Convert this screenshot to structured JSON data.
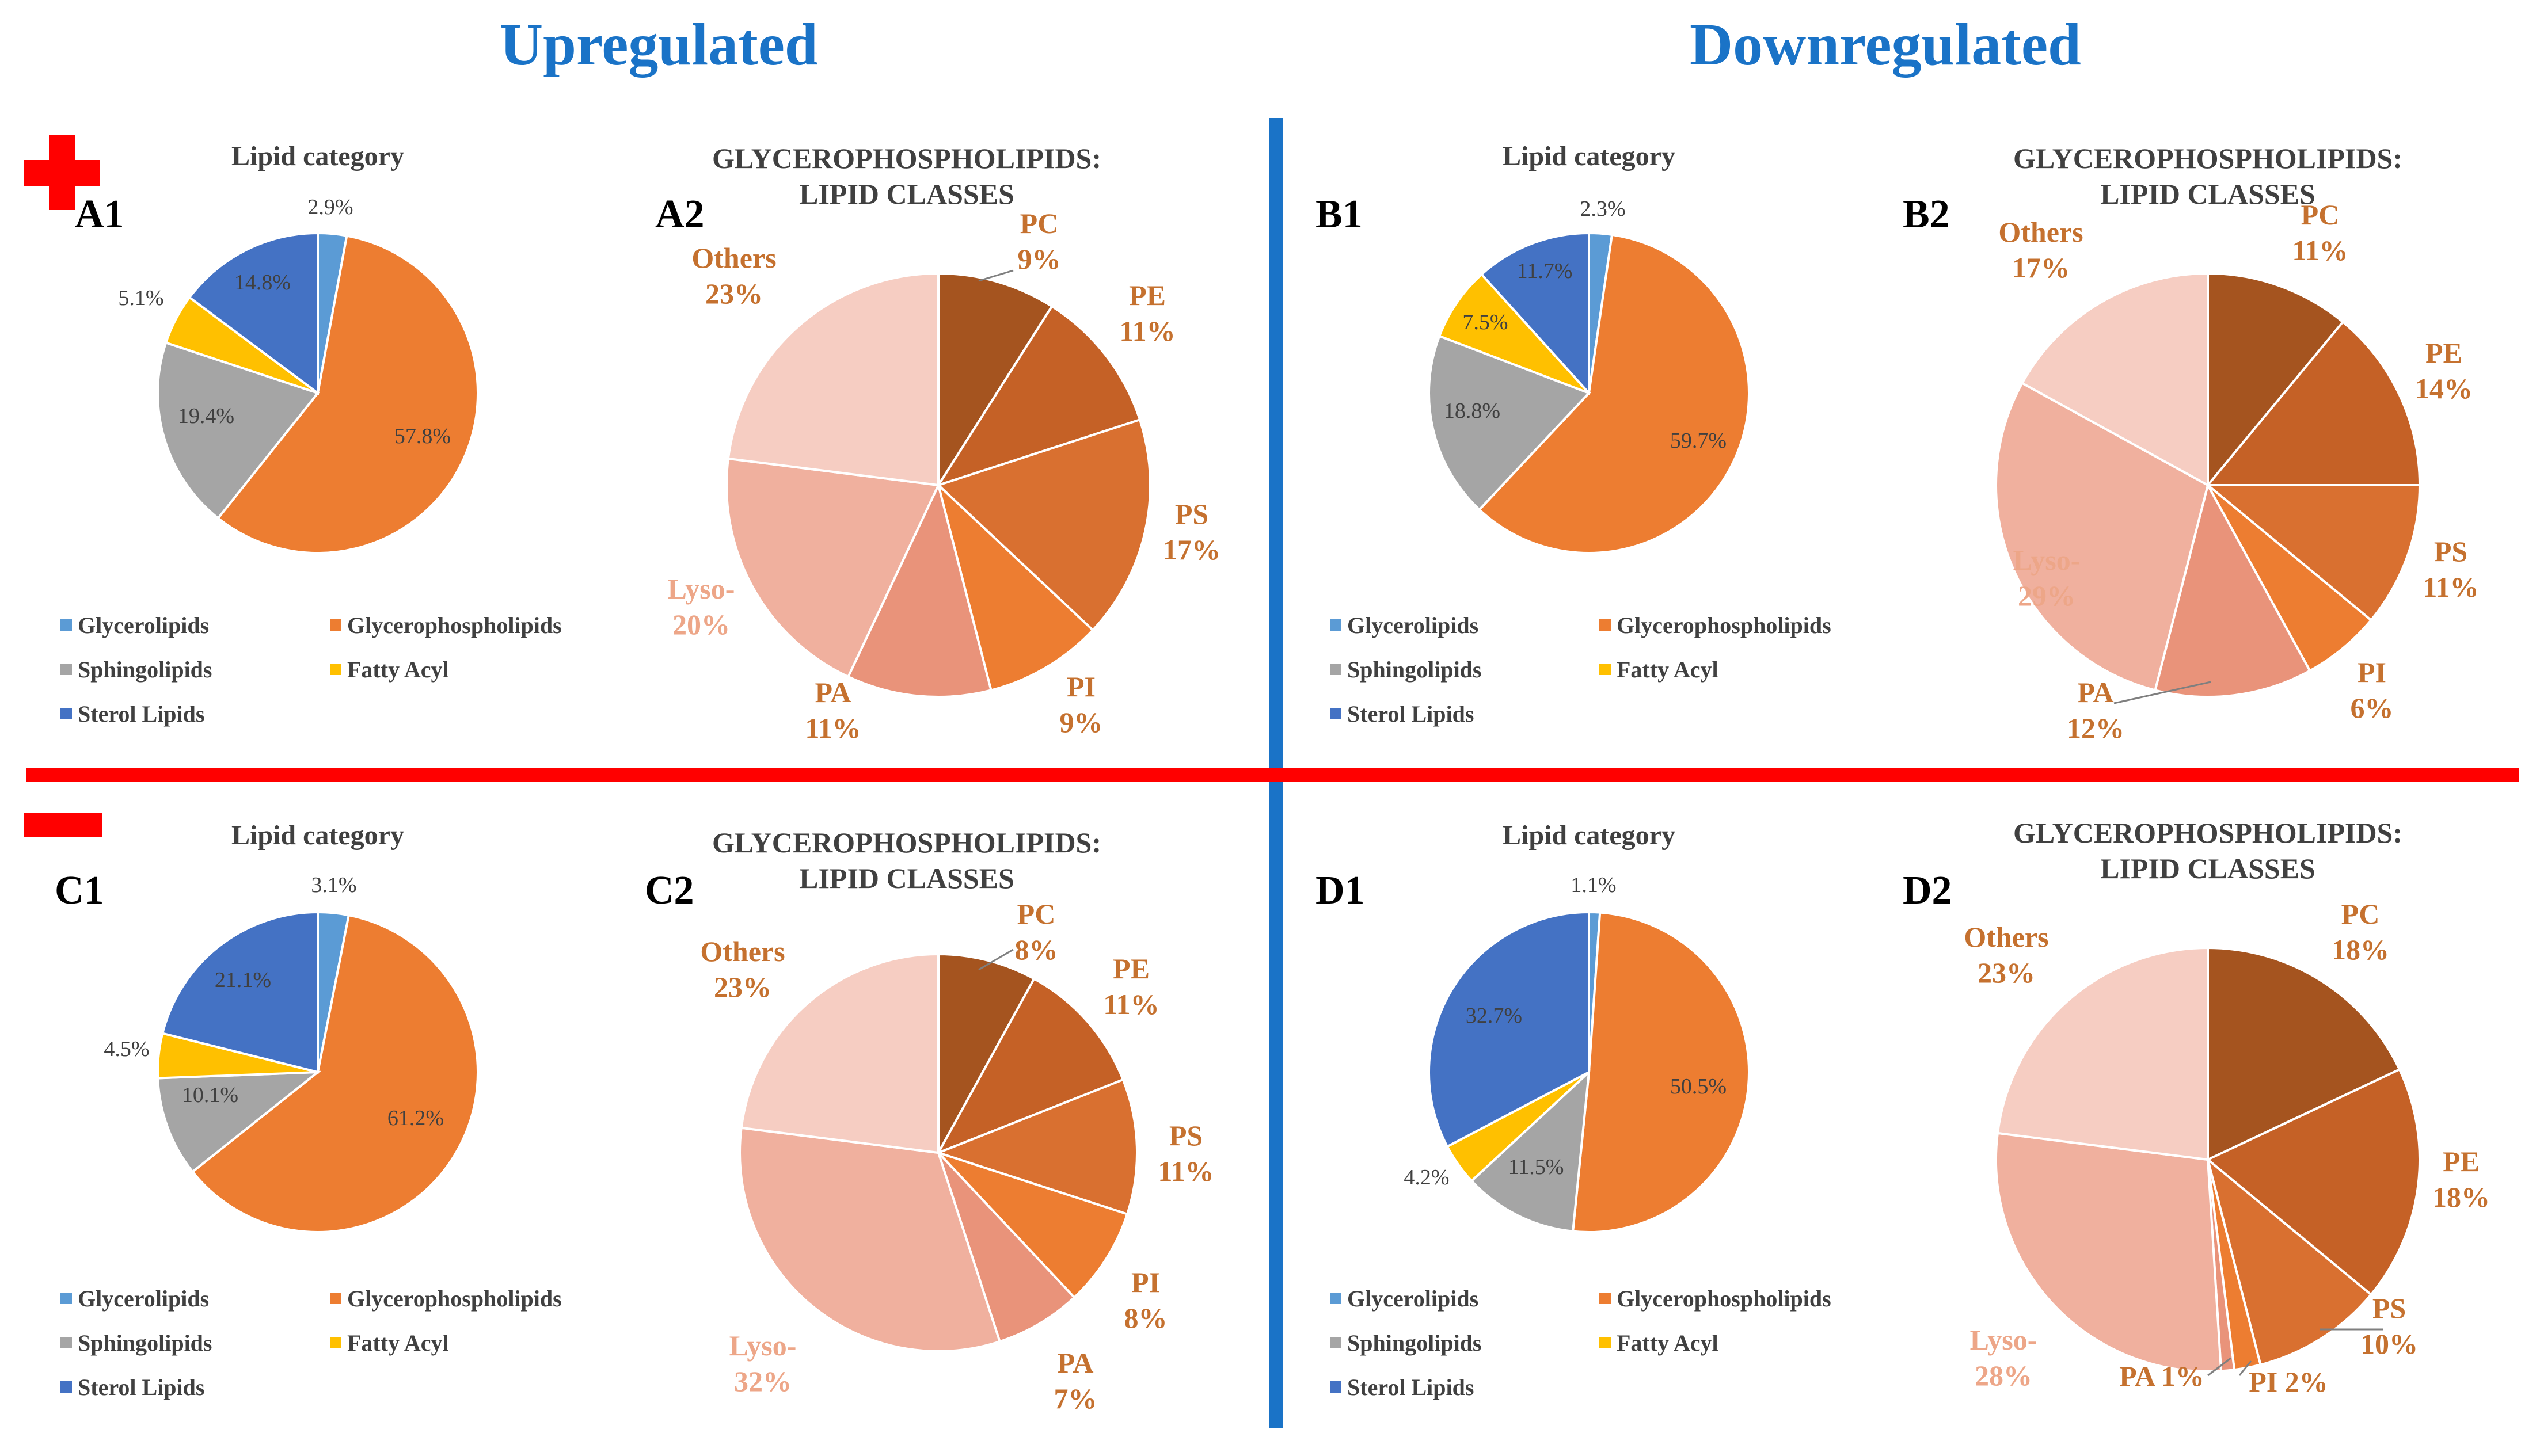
{
  "headings": {
    "up": "Upregulated",
    "down": "Downregulated"
  },
  "colors": {
    "divider_vertical": "#1a73c7",
    "divider_horizontal": "#ff0000",
    "cross": "#ff0000",
    "heading": "#1a73c7",
    "categories": {
      "Glycerolipids": "#5b9bd5",
      "Glycerophospholipids": "#ed7d31",
      "Sphingolipids": "#a5a5a5",
      "Fatty Acyl": "#ffc000",
      "Sterol Lipids": "#4472c4"
    },
    "classes": {
      "PC": "#a5541f",
      "PE": "#c56126",
      "PS": "#d97030",
      "PI": "#ed7d31",
      "PA": "#e9937a",
      "Lyso-": "#f0b09e",
      "Others": "#f6cdc2"
    },
    "class_label_dark": "#c5712f",
    "class_label_light": "#eda688"
  },
  "symbols": {
    "upregulated": "plus",
    "downregulated": "minus"
  },
  "legend_labels": [
    "Glycerolipids",
    "Glycerophospholipids",
    "Sphingolipids",
    "Fatty Acyl",
    "Sterol Lipids"
  ],
  "chart_data": [
    {
      "id": "A1",
      "type": "pie",
      "title": "Lipid category",
      "panel_label": "A1",
      "slices": [
        {
          "label": "Glycerolipids",
          "value": 2.9,
          "text": "2.9%"
        },
        {
          "label": "Glycerophospholipids",
          "value": 57.8,
          "text": "57.8%"
        },
        {
          "label": "Sphingolipids",
          "value": 19.4,
          "text": "19.4%"
        },
        {
          "label": "Fatty Acyl",
          "value": 5.1,
          "text": "5.1%"
        },
        {
          "label": "Sterol Lipids",
          "value": 14.8,
          "text": "14.8%"
        }
      ]
    },
    {
      "id": "A2",
      "type": "pie",
      "title": [
        "GLYCEROPHOSPHOLIPIDS:",
        "LIPID CLASSES"
      ],
      "panel_label": "A2",
      "slices": [
        {
          "label": "PC",
          "value": 9,
          "text": "9%"
        },
        {
          "label": "PE",
          "value": 11,
          "text": "11%"
        },
        {
          "label": "PS",
          "value": 17,
          "text": "17%"
        },
        {
          "label": "PI",
          "value": 9,
          "text": "9%"
        },
        {
          "label": "PA",
          "value": 11,
          "text": "11%"
        },
        {
          "label": "Lyso-",
          "value": 20,
          "text": "20%"
        },
        {
          "label": "Others",
          "value": 23,
          "text": "23%"
        }
      ]
    },
    {
      "id": "B1",
      "type": "pie",
      "title": "Lipid category",
      "panel_label": "B1",
      "slices": [
        {
          "label": "Glycerolipids",
          "value": 2.3,
          "text": "2.3%"
        },
        {
          "label": "Glycerophospholipids",
          "value": 59.7,
          "text": "59.7%"
        },
        {
          "label": "Sphingolipids",
          "value": 18.8,
          "text": "18.8%"
        },
        {
          "label": "Fatty Acyl",
          "value": 7.5,
          "text": "7.5%"
        },
        {
          "label": "Sterol Lipids",
          "value": 11.7,
          "text": "11.7%"
        }
      ]
    },
    {
      "id": "B2",
      "type": "pie",
      "title": [
        "GLYCEROPHOSPHOLIPIDS:",
        "LIPID CLASSES"
      ],
      "panel_label": "B2",
      "slices": [
        {
          "label": "PC",
          "value": 11,
          "text": "11%"
        },
        {
          "label": "PE",
          "value": 14,
          "text": "14%"
        },
        {
          "label": "PS",
          "value": 11,
          "text": "11%"
        },
        {
          "label": "PI",
          "value": 6,
          "text": "6%"
        },
        {
          "label": "PA",
          "value": 12,
          "text": "12%"
        },
        {
          "label": "Lyso-",
          "value": 29,
          "text": "29%"
        },
        {
          "label": "Others",
          "value": 17,
          "text": "17%"
        }
      ]
    },
    {
      "id": "C1",
      "type": "pie",
      "title": "Lipid category",
      "panel_label": "C1",
      "slices": [
        {
          "label": "Glycerolipids",
          "value": 3.1,
          "text": "3.1%"
        },
        {
          "label": "Glycerophospholipids",
          "value": 61.2,
          "text": "61.2%"
        },
        {
          "label": "Sphingolipids",
          "value": 10.1,
          "text": "10.1%"
        },
        {
          "label": "Fatty Acyl",
          "value": 4.5,
          "text": "4.5%"
        },
        {
          "label": "Sterol Lipids",
          "value": 21.1,
          "text": "21.1%"
        }
      ]
    },
    {
      "id": "C2",
      "type": "pie",
      "title": [
        "GLYCEROPHOSPHOLIPIDS:",
        "LIPID CLASSES"
      ],
      "panel_label": "C2",
      "slices": [
        {
          "label": "PC",
          "value": 8,
          "text": "8%"
        },
        {
          "label": "PE",
          "value": 11,
          "text": "11%"
        },
        {
          "label": "PS",
          "value": 11,
          "text": "11%"
        },
        {
          "label": "PI",
          "value": 8,
          "text": "8%"
        },
        {
          "label": "PA",
          "value": 7,
          "text": "7%"
        },
        {
          "label": "Lyso-",
          "value": 32,
          "text": "32%"
        },
        {
          "label": "Others",
          "value": 23,
          "text": "23%"
        }
      ]
    },
    {
      "id": "D1",
      "type": "pie",
      "title": "Lipid category",
      "panel_label": "D1",
      "slices": [
        {
          "label": "Glycerolipids",
          "value": 1.1,
          "text": "1.1%"
        },
        {
          "label": "Glycerophospholipids",
          "value": 50.5,
          "text": "50.5%"
        },
        {
          "label": "Sphingolipids",
          "value": 11.5,
          "text": "11.5%"
        },
        {
          "label": "Fatty Acyl",
          "value": 4.2,
          "text": "4.2%"
        },
        {
          "label": "Sterol Lipids",
          "value": 32.7,
          "text": "32.7%"
        }
      ]
    },
    {
      "id": "D2",
      "type": "pie",
      "title": [
        "GLYCEROPHOSPHOLIPIDS:",
        "LIPID CLASSES"
      ],
      "panel_label": "D2",
      "slices": [
        {
          "label": "PC",
          "value": 18,
          "text": "18%"
        },
        {
          "label": "PE",
          "value": 18,
          "text": "18%"
        },
        {
          "label": "PS",
          "value": 10,
          "text": "10%"
        },
        {
          "label": "PI",
          "value": 2,
          "text": "2%"
        },
        {
          "label": "PA",
          "value": 1,
          "text": "1%"
        },
        {
          "label": "Lyso-",
          "value": 28,
          "text": "28%"
        },
        {
          "label": "Others",
          "value": 23,
          "text": "23%"
        }
      ]
    }
  ]
}
